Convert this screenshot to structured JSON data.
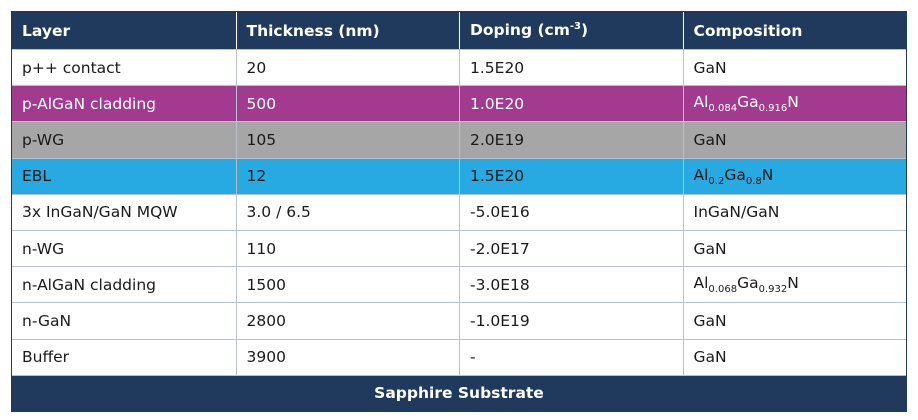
{
  "table": {
    "header": [
      "Layer",
      "Thickness (nm)",
      [
        "Doping (cm",
        "-3",
        ")"
      ],
      "Composition"
    ],
    "rows": [
      [
        "p++ contact",
        "20",
        "1.5E20",
        "GaN"
      ],
      [
        "p-AlGaN cladding",
        "500",
        "1.0E20",
        [
          "Al",
          "0.084",
          "Ga",
          "0.916",
          "N"
        ]
      ],
      [
        "p-WG",
        "105",
        "2.0E19",
        "GaN"
      ],
      [
        "EBL",
        "12",
        "1.5E20",
        [
          "Al",
          "0.2",
          "Ga",
          "0.8",
          "N"
        ]
      ],
      [
        "3x InGaN/GaN MQW",
        "3.0 / 6.5",
        "-5.0E16",
        "InGaN/GaN"
      ],
      [
        "n-WG",
        "110",
        "-2.0E17",
        "GaN"
      ],
      [
        "n-AlGaN cladding",
        "1500",
        "-3.0E18",
        [
          "Al",
          "0.068",
          "Ga",
          "0.932",
          "N"
        ]
      ],
      [
        "n-GaN",
        "2800",
        "-1.0E19",
        "GaN"
      ],
      [
        "Buffer",
        "3900",
        "-",
        "GaN"
      ]
    ],
    "footer": "Sapphire Substrate"
  }
}
